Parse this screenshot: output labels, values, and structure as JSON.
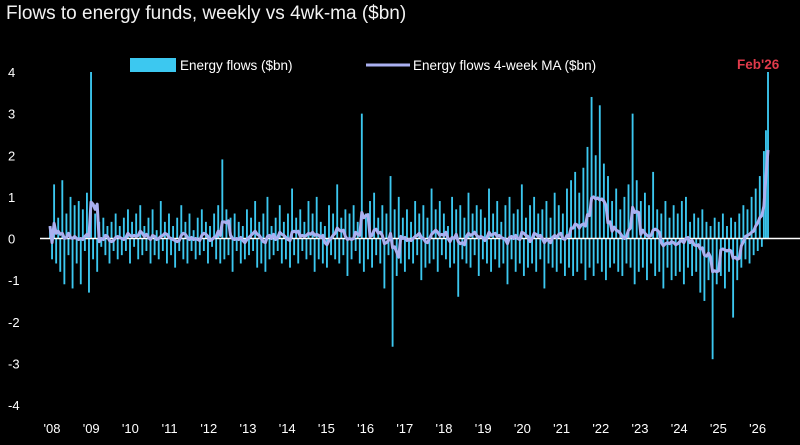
{
  "chart_data": {
    "type": "bar+line",
    "title": "Flows to energy funds, weekly vs 4wk-ma ($bn)",
    "ylim": [
      -4,
      4
    ],
    "yticks": [
      4,
      3,
      2,
      1,
      0,
      -1,
      -2,
      -3,
      -4
    ],
    "xticks": [
      "'08",
      "'09",
      "'10",
      "'11",
      "'12",
      "'13",
      "'14",
      "'15",
      "'16",
      "'17",
      "'18",
      "'19",
      "'20",
      "'21",
      "'22",
      "'23",
      "'24",
      "'25",
      "'26"
    ],
    "annotation": "Feb'26",
    "colors": {
      "bars": "#3cc8f0",
      "ma_line": "#aab0f0",
      "annotation": "#e03a4a",
      "zero_line": "#ffffff"
    },
    "series": [
      {
        "name": "Energy flows ($bn)",
        "kind": "bar",
        "weekly_values": [
          0.3,
          -0.5,
          1.3,
          -0.6,
          0.5,
          -0.8,
          1.4,
          -1.1,
          0.6,
          -0.4,
          1.0,
          -1.2,
          0.8,
          -0.6,
          0.9,
          -1.1,
          0.7,
          -0.3,
          1.1,
          -1.3,
          4.0,
          -0.5,
          0.6,
          -0.8,
          0.4,
          -0.2,
          0.5,
          -0.4,
          0.3,
          -0.6,
          0.4,
          -0.3,
          0.6,
          -0.5,
          0.3,
          -0.4,
          0.5,
          -0.3,
          0.7,
          -0.6,
          0.4,
          -0.2,
          0.6,
          -0.5,
          0.8,
          -0.4,
          0.3,
          -0.3,
          0.5,
          -0.6,
          0.7,
          -0.4,
          0.2,
          -0.5,
          0.9,
          -0.3,
          0.4,
          -0.6,
          0.6,
          -0.4,
          0.3,
          -0.7,
          0.5,
          -0.3,
          0.8,
          -0.5,
          0.4,
          -0.6,
          0.6,
          -0.3,
          0.2,
          -0.5,
          0.5,
          -0.4,
          0.7,
          -0.3,
          0.4,
          -0.6,
          0.3,
          -0.2,
          0.6,
          -0.5,
          0.8,
          -0.6,
          1.9,
          -0.5,
          0.7,
          -0.4,
          0.5,
          -0.8,
          0.6,
          -0.3,
          0.4,
          -0.6,
          0.3,
          -0.5,
          0.7,
          -0.4,
          0.5,
          -0.3,
          0.9,
          -0.7,
          0.4,
          -0.6,
          0.6,
          -0.8,
          1.0,
          -0.5,
          0.3,
          -0.4,
          0.5,
          -0.3,
          0.8,
          -0.6,
          0.4,
          -0.5,
          0.6,
          -0.7,
          1.2,
          -0.4,
          0.5,
          -0.6,
          0.7,
          -0.3,
          0.4,
          -0.5,
          0.9,
          -0.4,
          0.6,
          -0.8,
          1.0,
          -0.5,
          0.4,
          -0.6,
          0.3,
          -0.7,
          0.8,
          -0.4,
          0.6,
          -0.5,
          1.3,
          -0.6,
          0.5,
          -0.4,
          0.7,
          -0.9,
          0.6,
          -0.5,
          0.8,
          -0.3,
          0.4,
          -0.6,
          3.0,
          -0.8,
          0.6,
          -0.5,
          0.9,
          -0.7,
          1.1,
          -0.4,
          0.5,
          -0.6,
          0.8,
          -1.2,
          0.6,
          -0.4,
          1.5,
          -2.6,
          0.7,
          -0.9,
          1.0,
          -0.6,
          0.5,
          -0.8,
          0.7,
          -0.5,
          0.4,
          -0.6,
          0.9,
          -0.4,
          0.6,
          -1.0,
          0.8,
          -0.7,
          0.5,
          -0.6,
          1.2,
          -0.5,
          0.7,
          -0.8,
          0.9,
          -0.4,
          0.6,
          -0.5,
          0.3,
          -0.7,
          1.0,
          -0.6,
          0.7,
          -1.4,
          0.8,
          -0.5,
          0.5,
          -0.6,
          1.1,
          -0.7,
          0.6,
          -0.4,
          0.8,
          -0.9,
          0.7,
          -0.5,
          0.5,
          -0.6,
          1.2,
          -0.8,
          0.6,
          -0.5,
          0.9,
          -0.7,
          0.4,
          -0.6,
          0.8,
          -1.1,
          1.0,
          -0.5,
          0.6,
          -0.8,
          0.7,
          -0.6,
          1.3,
          -0.9,
          0.5,
          -0.7,
          0.8,
          -0.6,
          1.0,
          -0.8,
          0.6,
          -0.5,
          0.7,
          -1.2,
          0.9,
          -0.6,
          0.5,
          -0.7,
          1.1,
          -0.8,
          0.8,
          -0.6,
          0.6,
          -0.9,
          1.2,
          -0.7,
          1.4,
          -0.9,
          1.6,
          -0.8,
          1.1,
          -0.6,
          1.7,
          -1.0,
          2.2,
          -0.7,
          3.4,
          -0.9,
          2.0,
          -0.6,
          3.2,
          -0.8,
          1.8,
          -1.0,
          1.5,
          -0.7,
          0.9,
          -0.6,
          1.2,
          -0.8,
          0.7,
          -0.9,
          1.0,
          -0.6,
          1.3,
          -0.7,
          3.0,
          -1.1,
          1.4,
          -0.8,
          0.9,
          -0.7,
          1.1,
          -1.0,
          0.8,
          -0.6,
          1.6,
          -0.9,
          0.7,
          -0.8,
          0.6,
          -1.2,
          0.9,
          -0.7,
          0.5,
          -1.0,
          0.8,
          -0.9,
          0.6,
          -0.8,
          0.9,
          -1.1,
          1.0,
          -0.7,
          0.4,
          -0.9,
          0.6,
          -0.8,
          0.5,
          -1.3,
          0.7,
          -1.5,
          0.4,
          -1.0,
          0.3,
          -2.9,
          0.5,
          -1.1,
          0.4,
          -0.9,
          0.6,
          -1.2,
          0.3,
          -0.8,
          0.5,
          -1.9,
          0.4,
          -1.0,
          0.6,
          -0.7,
          0.8,
          -0.5,
          0.7,
          -0.6,
          1.0,
          -0.4,
          1.2,
          -0.3,
          1.5,
          -0.2,
          2.1,
          2.6,
          4.0
        ]
      },
      {
        "name": "Energy flows 4-week MA ($bn)",
        "kind": "line",
        "note": "computed as 4-week moving average of weekly flows"
      }
    ]
  }
}
